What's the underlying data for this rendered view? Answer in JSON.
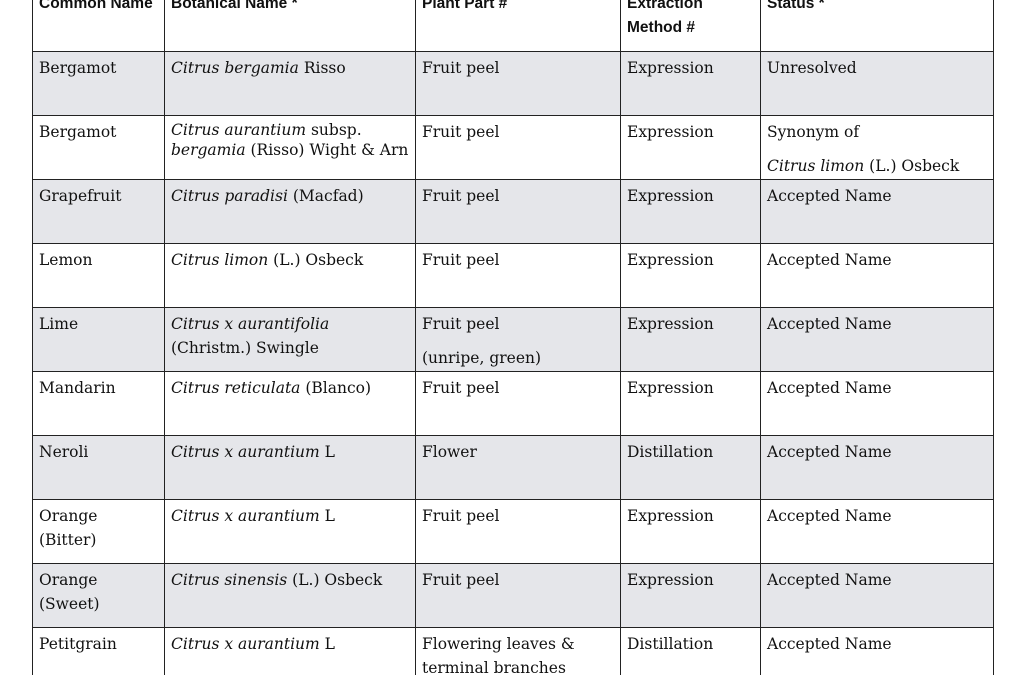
{
  "table": {
    "headers": [
      "Common Name",
      "Botanical Name *",
      "Plant Part #",
      "Extraction Method #",
      "Status *"
    ],
    "rows": [
      {
        "common": "Bergamot",
        "bot_italic": "Citrus bergamia",
        "bot_rest": " Risso",
        "part": "Fruit peel",
        "method": "Expression",
        "status": "Unresolved"
      },
      {
        "common": "Bergamot",
        "bot_italic": "Citrus aurantium",
        "bot_rest": " subsp.",
        "bot_italic2": "bergamia",
        "bot_rest2": " (Risso) Wight & Arn",
        "part": "Fruit peel",
        "method": "Expression",
        "status": "Synonym of",
        "status_italic": "Citrus limon",
        "status_rest": " (L.) Osbeck"
      },
      {
        "common": "Grapefruit",
        "bot_italic": "Citrus paradisi",
        "bot_rest": " (Macfad)",
        "part": "Fruit peel",
        "method": "Expression",
        "status": "Accepted Name"
      },
      {
        "common": "Lemon",
        "bot_italic": "Citrus limon",
        "bot_rest": " (L.) Osbeck",
        "part": "Fruit peel",
        "method": "Expression",
        "status": "Accepted Name"
      },
      {
        "common": "Lime",
        "bot_italic": "Citrus x aurantifolia",
        "bot_rest": "(Christm.) Swingle",
        "part": "Fruit peel",
        "part2": "(unripe, green)",
        "method": "Expression",
        "status": "Accepted Name"
      },
      {
        "common": "Mandarin",
        "bot_italic": "Citrus reticulata",
        "bot_rest": " (Blanco)",
        "part": "Fruit peel",
        "method": "Expression",
        "status": "Accepted Name"
      },
      {
        "common": "Neroli",
        "bot_italic": "Citrus x aurantium",
        "bot_rest": " L",
        "part": "Flower",
        "method": "Distillation",
        "status": "Accepted Name"
      },
      {
        "common": "Orange (Bitter)",
        "bot_italic": "Citrus x aurantium",
        "bot_rest": " L",
        "part": "Fruit peel",
        "method": "Expression",
        "status": "Accepted Name"
      },
      {
        "common": "Orange (Sweet)",
        "bot_italic": "Citrus sinensis",
        "bot_rest": " (L.) Osbeck",
        "part": "Fruit peel",
        "method": "Expression",
        "status": "Accepted Name"
      },
      {
        "common": "Petitgrain",
        "bot_italic": "Citrus x aurantium",
        "bot_rest": " L",
        "part": "Flowering leaves & terminal branches",
        "method": "Distillation",
        "status": "Accepted Name"
      }
    ]
  },
  "colors": {
    "shade": "#e5e6ea",
    "border": "#222222"
  }
}
